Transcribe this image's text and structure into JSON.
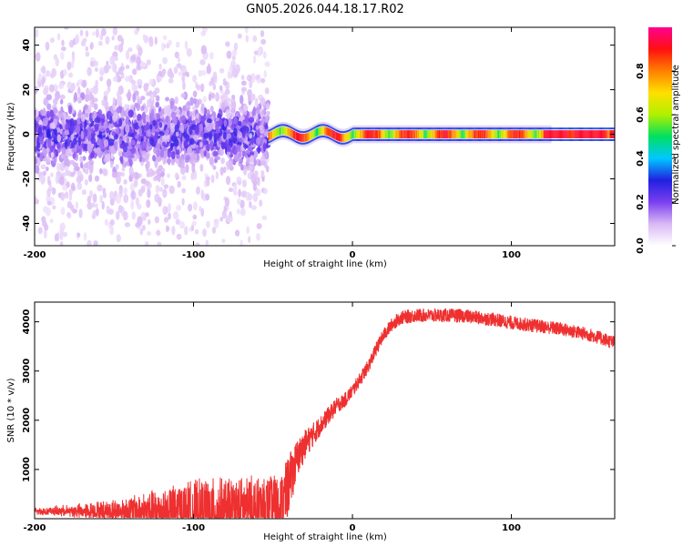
{
  "title": "GN05.2026.044.18.17.R02",
  "chart_data": [
    {
      "type": "heatmap",
      "xlabel": "Height of straight line (km)",
      "ylabel": "Frequency (Hz)",
      "xlim": [
        -200,
        165
      ],
      "ylim": [
        -50,
        48
      ],
      "xticks": [
        -200,
        -100,
        0,
        100
      ],
      "yticks": [
        -40,
        -20,
        0,
        20,
        40
      ],
      "colorbar": {
        "label": "Normalized spectral amplitude",
        "range": [
          0,
          1
        ],
        "ticks": [
          "0.0",
          "0.2",
          "0.4",
          "0.6",
          "0.8"
        ],
        "colors": [
          "#ffffff",
          "#d9b8f5",
          "#7a3ff0",
          "#2020e0",
          "#00c8ff",
          "#00e060",
          "#b0f000",
          "#ffe000",
          "#ff8000",
          "#ff1010",
          "#ff0090"
        ]
      },
      "features": [
        {
          "x_range": [
            -200,
            -53
          ],
          "description": "broadband noise centered near 0 Hz, amplitude mostly below 0.3"
        },
        {
          "x_range": [
            -53,
            165
          ],
          "description": "narrow band at 0 Hz, amplitude 0.5-1.0"
        }
      ]
    },
    {
      "type": "line",
      "xlabel": "Height of straight line (km)",
      "ylabel": "SNR (10 * v/v)",
      "xlim": [
        -200,
        165
      ],
      "ylim": [
        0,
        4400
      ],
      "xticks": [
        -200,
        -100,
        0,
        100
      ],
      "yticks": [
        1000,
        2000,
        3000,
        4000
      ],
      "color": "#ee3030",
      "series": [
        {
          "x": [
            -200,
            -150,
            -100,
            -55,
            -45,
            -40,
            -35,
            -30,
            -25,
            -20,
            -15,
            -10,
            -5,
            0,
            5,
            10,
            15,
            20,
            25,
            30,
            40,
            50,
            60,
            70,
            80,
            90,
            100,
            110,
            120,
            130,
            140,
            150,
            160,
            165
          ],
          "values": [
            150,
            150,
            150,
            160,
            200,
            700,
            1200,
            1500,
            1700,
            1900,
            2100,
            2300,
            2400,
            2600,
            2850,
            3100,
            3450,
            3750,
            3950,
            4080,
            4130,
            4130,
            4130,
            4120,
            4080,
            4040,
            3980,
            3940,
            3900,
            3860,
            3800,
            3730,
            3630,
            3570
          ],
          "noise_band": [
            0,
            200,
            600,
            700,
            700,
            600,
            400,
            300,
            250,
            200,
            180,
            160,
            150,
            140,
            140,
            140,
            140,
            140,
            140,
            140,
            140,
            140,
            140,
            140,
            140,
            140,
            140,
            140,
            140,
            140,
            140,
            140,
            140,
            140
          ]
        }
      ]
    }
  ]
}
